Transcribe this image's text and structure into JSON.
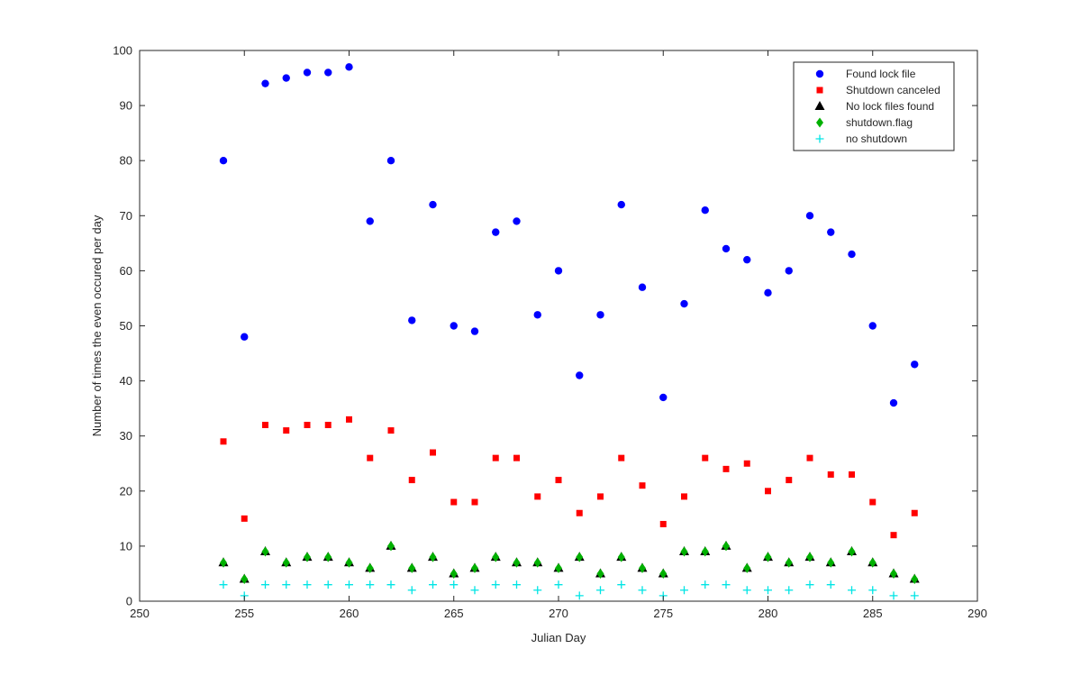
{
  "chart_data": {
    "type": "scatter",
    "title": "",
    "xlabel": "Julian Day",
    "ylabel": "Number of times the even occured per day",
    "xlim": [
      250,
      290
    ],
    "ylim": [
      0,
      100
    ],
    "xticks": [
      250,
      255,
      260,
      265,
      270,
      275,
      280,
      285,
      290
    ],
    "yticks": [
      0,
      10,
      20,
      30,
      40,
      50,
      60,
      70,
      80,
      90,
      100
    ],
    "grid": false,
    "legend_position": "top-right",
    "x": [
      254,
      255,
      256,
      257,
      258,
      259,
      260,
      261,
      262,
      263,
      264,
      265,
      266,
      267,
      268,
      269,
      270,
      271,
      272,
      273,
      274,
      275,
      276,
      277,
      278,
      279,
      280,
      281,
      282,
      283,
      284,
      285,
      286,
      287
    ],
    "series": [
      {
        "name": "Found lock file",
        "marker": "circle",
        "color": "#0000ff",
        "values": [
          80,
          48,
          94,
          95,
          96,
          96,
          97,
          69,
          80,
          51,
          72,
          50,
          49,
          67,
          69,
          52,
          60,
          41,
          52,
          72,
          57,
          37,
          54,
          71,
          64,
          62,
          56,
          60,
          70,
          67,
          63,
          50,
          36,
          43
        ]
      },
      {
        "name": "Shutdown canceled",
        "marker": "square",
        "color": "#ff0000",
        "values": [
          29,
          15,
          32,
          31,
          32,
          32,
          33,
          26,
          31,
          22,
          27,
          18,
          18,
          26,
          26,
          19,
          22,
          16,
          19,
          26,
          21,
          14,
          19,
          26,
          24,
          25,
          20,
          22,
          26,
          23,
          23,
          18,
          12,
          16
        ]
      },
      {
        "name": "No lock files found",
        "marker": "triangle",
        "color": "#000000",
        "values": [
          7,
          4,
          9,
          7,
          8,
          8,
          7,
          6,
          10,
          6,
          8,
          5,
          6,
          8,
          7,
          7,
          6,
          8,
          5,
          8,
          6,
          5,
          9,
          9,
          10,
          6,
          8,
          7,
          8,
          7,
          9,
          7,
          5,
          4
        ]
      },
      {
        "name": "shutdown.flag",
        "marker": "diamond",
        "color": "#00b000",
        "values": [
          7,
          4,
          9,
          7,
          8,
          8,
          7,
          6,
          10,
          6,
          8,
          5,
          6,
          8,
          7,
          7,
          6,
          8,
          5,
          8,
          6,
          5,
          9,
          9,
          10,
          6,
          8,
          7,
          8,
          7,
          9,
          7,
          5,
          4
        ]
      },
      {
        "name": "no shutdown",
        "marker": "plus",
        "color": "#00e5e5",
        "values": [
          3,
          1,
          3,
          3,
          3,
          3,
          3,
          3,
          3,
          2,
          3,
          3,
          2,
          3,
          3,
          2,
          3,
          1,
          2,
          3,
          2,
          1,
          2,
          3,
          3,
          2,
          2,
          2,
          3,
          3,
          2,
          2,
          1,
          1
        ]
      }
    ]
  }
}
